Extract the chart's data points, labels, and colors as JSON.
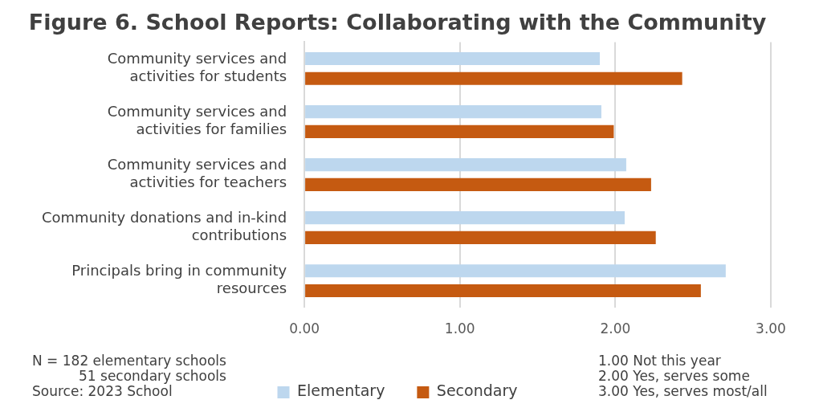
{
  "chart_data": {
    "type": "bar",
    "orientation": "horizontal",
    "title": "Figure 6. School Reports: Collaborating with the Community",
    "categories": [
      "Community services and activities for students",
      "Community services and activities for families",
      "Community services and activities for teachers",
      "Community donations and in-kind contributions",
      "Principals bring in community resources"
    ],
    "series": [
      {
        "name": "Elementary",
        "color": "#bdd7ee",
        "values": [
          1.9,
          1.91,
          2.07,
          2.06,
          2.71
        ]
      },
      {
        "name": "Secondary",
        "color": "#c55a11",
        "values": [
          2.43,
          1.99,
          2.23,
          2.26,
          2.55
        ]
      }
    ],
    "xlim": [
      0,
      3
    ],
    "xticks": [
      {
        "value": 0,
        "label": "0.00"
      },
      {
        "value": 1,
        "label": "1.00"
      },
      {
        "value": 2,
        "label": "2.00"
      },
      {
        "value": 3,
        "label": "3.00"
      }
    ],
    "grid": "x",
    "legend": "bottom",
    "annotations": [
      "N = 182 elementary schools",
      "51 secondary schools",
      "Source: 2023 School",
      "1.00 Not this year",
      "2.00 Yes, serves some",
      "3.00 Yes, serves most/all"
    ]
  }
}
